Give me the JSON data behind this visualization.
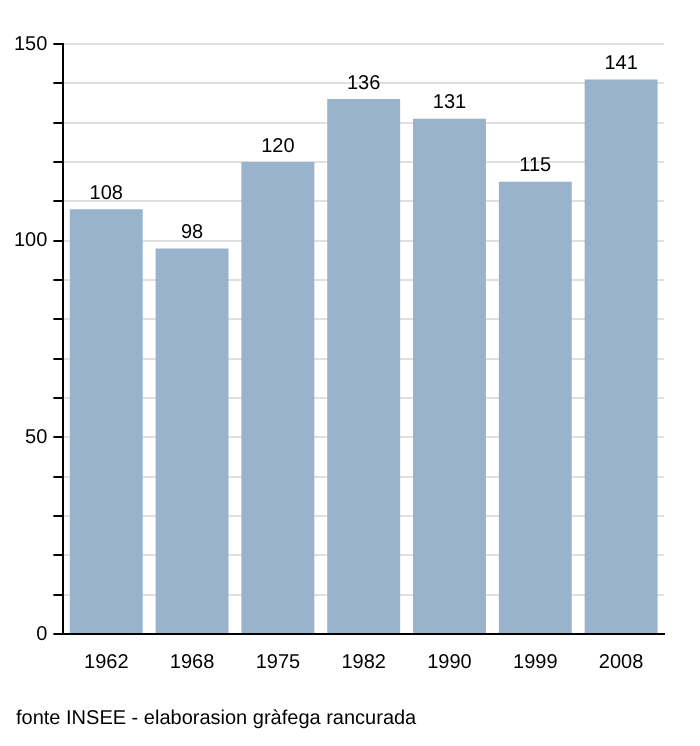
{
  "chart_data": {
    "type": "bar",
    "categories": [
      "1962",
      "1968",
      "1975",
      "1982",
      "1990",
      "1999",
      "2008"
    ],
    "values": [
      108,
      98,
      120,
      136,
      131,
      115,
      141
    ],
    "color": "#9ab3cd",
    "ylim": [
      0,
      150
    ],
    "yticks": [
      0,
      {
        "value": 10,
        "label": null
      },
      {
        "value": 20,
        "label": null
      },
      {
        "value": 30,
        "label": null
      },
      {
        "value": 40,
        "label": null
      },
      50,
      {
        "value": 60,
        "label": null
      },
      {
        "value": 70,
        "label": null
      },
      {
        "value": 80,
        "label": null
      },
      {
        "value": 90,
        "label": null
      },
      100,
      {
        "value": 110,
        "label": null
      },
      {
        "value": 120,
        "label": null
      },
      {
        "value": 130,
        "label": null
      },
      {
        "value": 140,
        "label": null
      },
      150
    ],
    "grid": "y",
    "data_labels": true,
    "legend": false,
    "annotations": [
      "fonte INSEE - elaborasion gràfega rancurada"
    ]
  }
}
